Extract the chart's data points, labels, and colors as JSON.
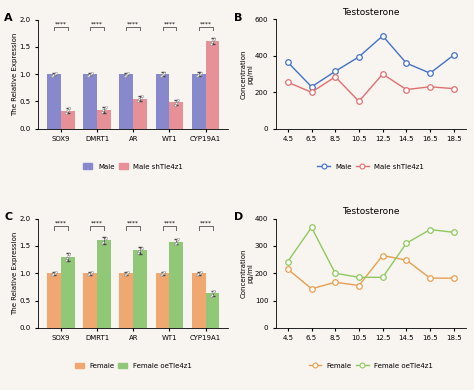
{
  "panel_A": {
    "label": "A",
    "categories": [
      "SOX9",
      "DMRT1",
      "AR",
      "WT1",
      "CYP19A1"
    ],
    "male_values": [
      1.0,
      1.0,
      1.0,
      1.0,
      1.0
    ],
    "sh_values": [
      0.33,
      0.35,
      0.55,
      0.48,
      1.6
    ],
    "male_err": [
      0.025,
      0.025,
      0.025,
      0.035,
      0.035
    ],
    "sh_err": [
      0.05,
      0.055,
      0.045,
      0.05,
      0.055
    ],
    "male_color": "#8888cc",
    "sh_color": "#e89098",
    "ylabel": "The Relative Expression",
    "ylim": [
      0,
      2.0
    ],
    "yticks": [
      0.0,
      0.5,
      1.0,
      1.5,
      2.0
    ],
    "legend_labels": [
      "Male",
      "Male shTle4z1"
    ]
  },
  "panel_B": {
    "title": "Testosterone",
    "label": "B",
    "x": [
      4.5,
      6.5,
      8.5,
      10.5,
      12.5,
      14.5,
      16.5,
      18.5
    ],
    "male_y": [
      365,
      230,
      315,
      395,
      510,
      360,
      305,
      405
    ],
    "sh_y": [
      255,
      200,
      285,
      150,
      300,
      215,
      230,
      220
    ],
    "male_color": "#4472c4",
    "sh_color": "#e07070",
    "ylabel": "Concentration\npg/ml",
    "ylim": [
      0,
      600
    ],
    "yticks": [
      0,
      200,
      400,
      600
    ],
    "legend_labels": [
      "Male",
      "Male shTle4z1"
    ]
  },
  "panel_C": {
    "label": "C",
    "categories": [
      "SOX9",
      "DMRT1",
      "AR",
      "WT1",
      "CYP19A1"
    ],
    "female_values": [
      1.0,
      1.0,
      1.0,
      1.0,
      1.0
    ],
    "oe_values": [
      1.3,
      1.6,
      1.42,
      1.58,
      0.63
    ],
    "female_err": [
      0.025,
      0.025,
      0.025,
      0.025,
      0.025
    ],
    "oe_err": [
      0.07,
      0.06,
      0.06,
      0.05,
      0.04
    ],
    "female_color": "#f0a870",
    "oe_color": "#90c878",
    "ylabel": "The Relative Expression",
    "ylim": [
      0,
      2.0
    ],
    "yticks": [
      0.0,
      0.5,
      1.0,
      1.5,
      2.0
    ],
    "legend_labels": [
      "Female",
      "Female oeTle4z1"
    ]
  },
  "panel_D": {
    "title": "Testosterone",
    "label": "D",
    "x": [
      4.5,
      6.5,
      8.5,
      10.5,
      12.5,
      14.5,
      16.5,
      18.5
    ],
    "female_y": [
      215,
      143,
      167,
      155,
      265,
      248,
      182,
      182
    ],
    "oe_y": [
      243,
      368,
      200,
      185,
      185,
      310,
      360,
      350
    ],
    "female_color": "#e8a050",
    "oe_color": "#90c860",
    "ylabel": "Concentration\npg/ml",
    "ylim": [
      0,
      400
    ],
    "yticks": [
      0,
      100,
      200,
      300,
      400
    ],
    "legend_labels": [
      "Female",
      "Female oeTle4z1"
    ]
  },
  "bg_color": "#f8f4f0"
}
